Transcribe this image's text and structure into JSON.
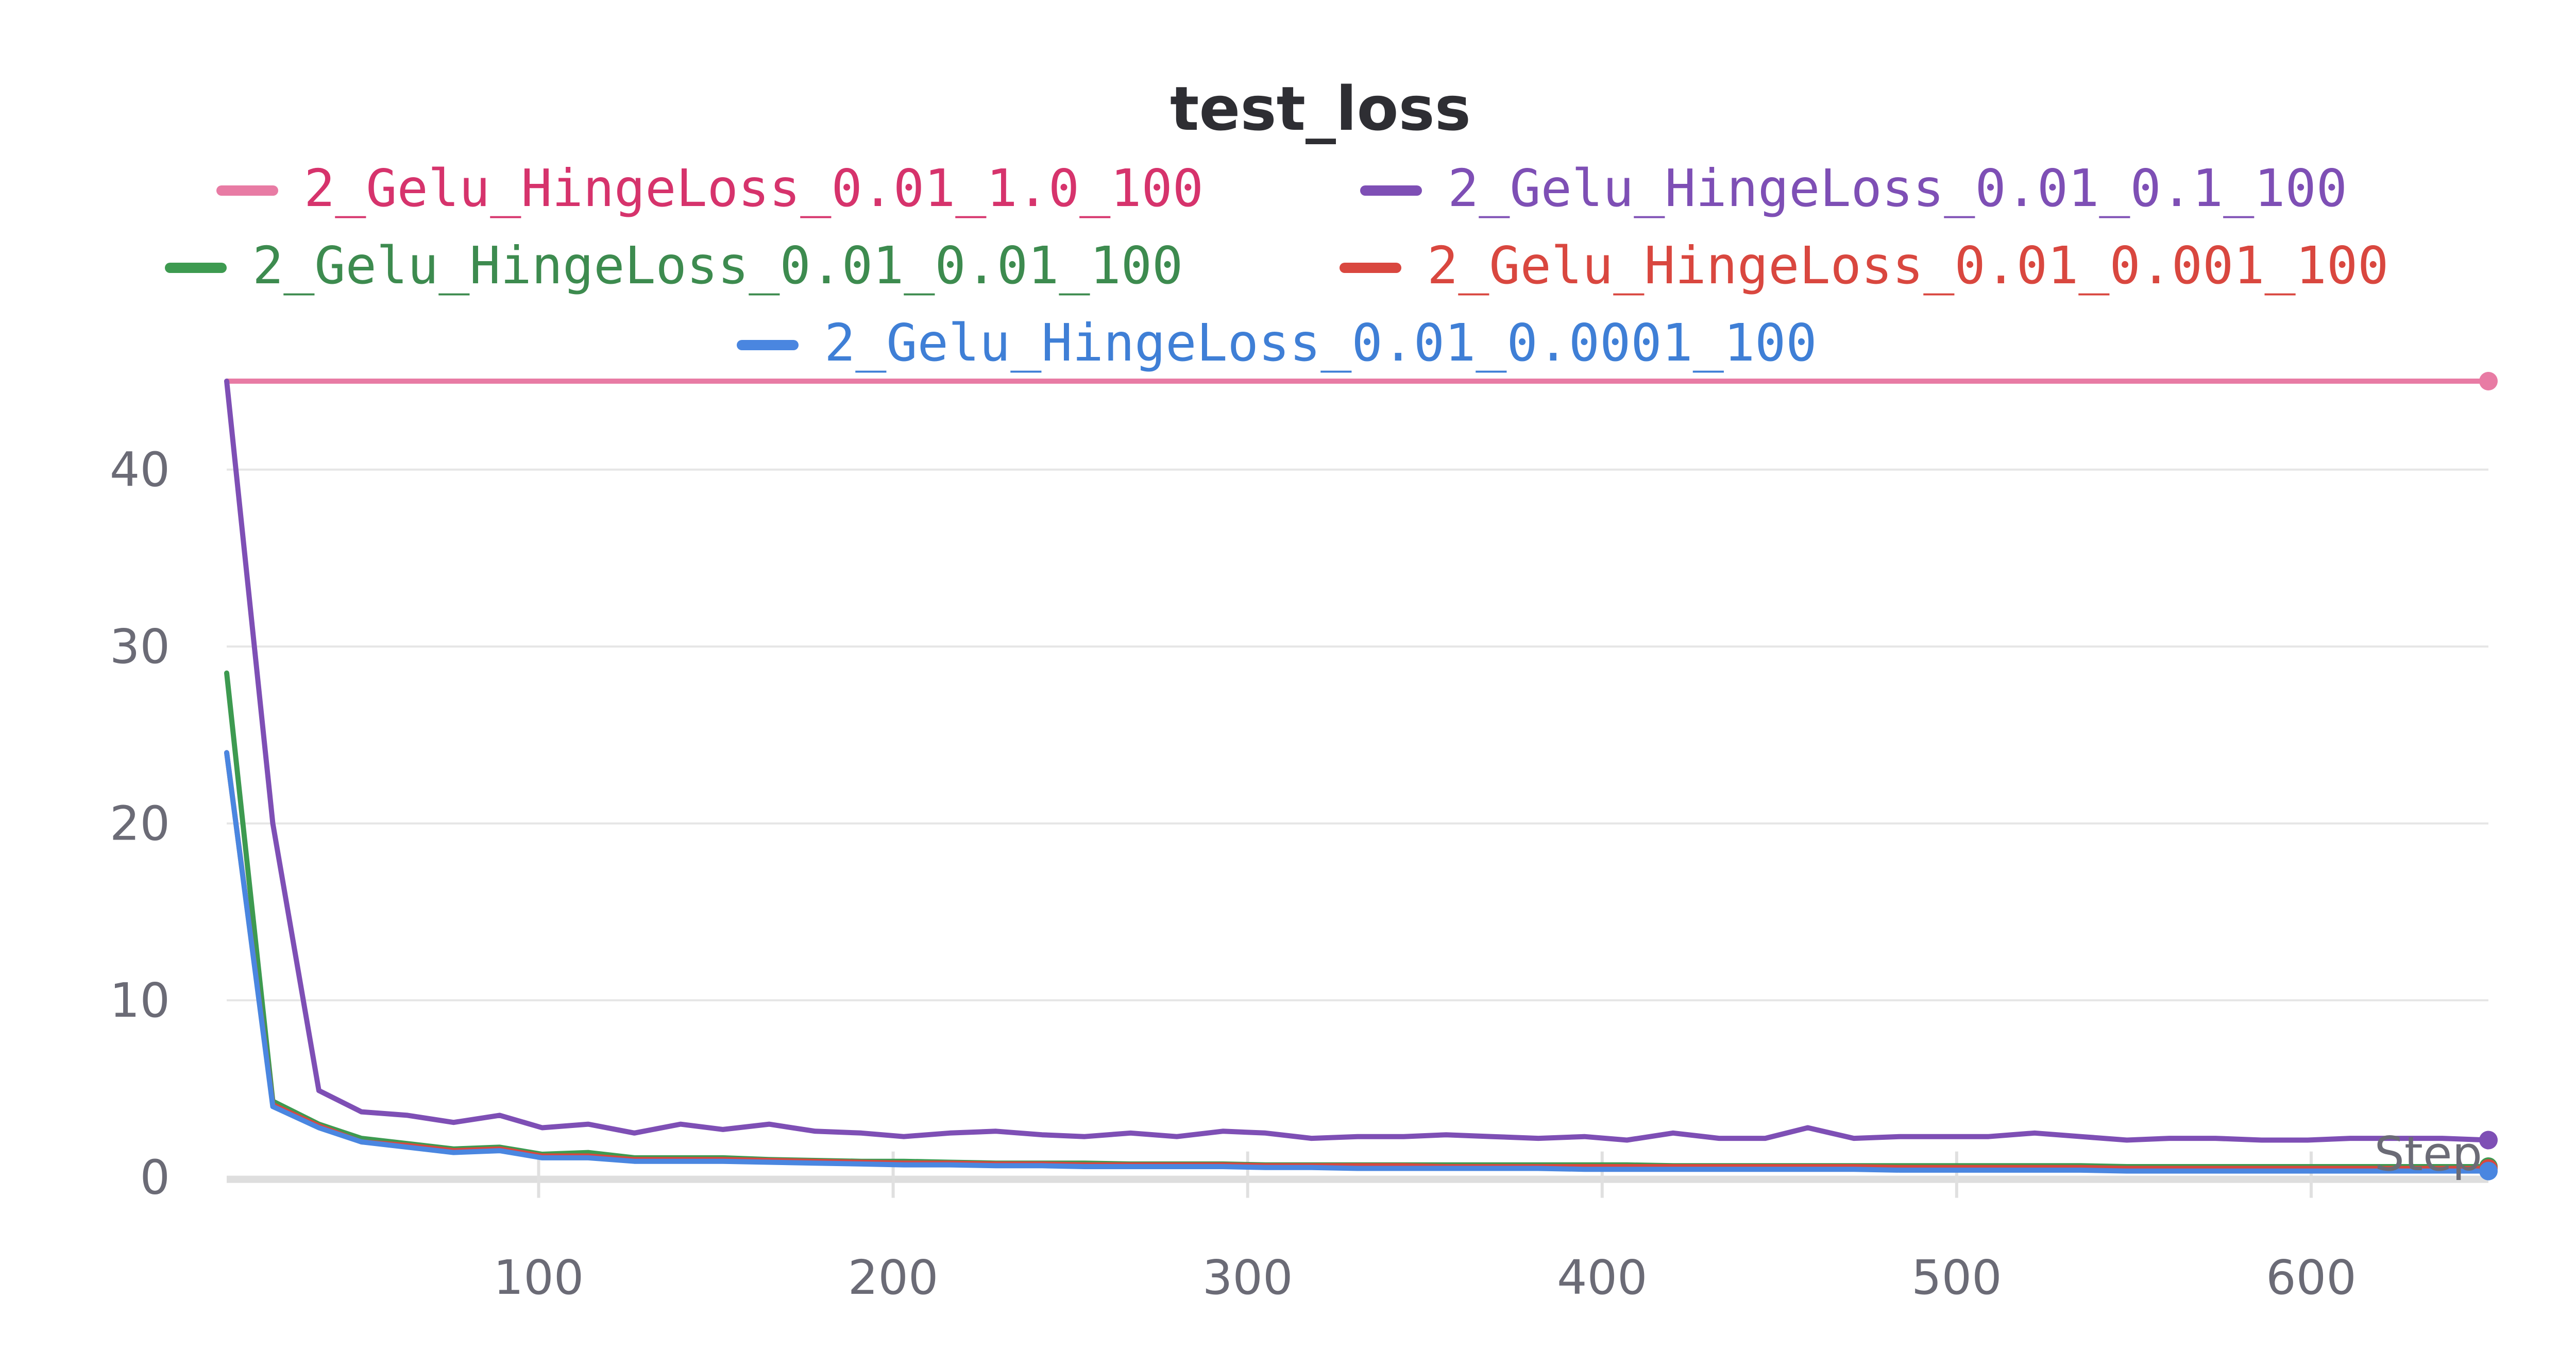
{
  "chart_data": {
    "type": "line",
    "title": "test_loss",
    "xlabel": "Step",
    "ylabel": "",
    "xlim": [
      12,
      650
    ],
    "ylim": [
      -1,
      45
    ],
    "x_ticks": [
      100,
      200,
      300,
      400,
      500,
      600
    ],
    "y_ticks": [
      0,
      10,
      20,
      30,
      40
    ],
    "grid": true,
    "legend_position": "top",
    "x": [
      12,
      25,
      38,
      50,
      63,
      76,
      89,
      101,
      114,
      127,
      140,
      152,
      165,
      178,
      191,
      203,
      216,
      229,
      242,
      254,
      267,
      280,
      293,
      305,
      318,
      331,
      344,
      356,
      369,
      382,
      395,
      407,
      420,
      433,
      446,
      458,
      471,
      484,
      497,
      509,
      522,
      535,
      548,
      560,
      573,
      586,
      599,
      611,
      624,
      637,
      650
    ],
    "series": [
      {
        "name": "2_Gelu_HingeLoss_0.01_1.0_100",
        "color": "#e87ba4",
        "legend_text_color": "#d6336c",
        "values": [
          45,
          45,
          45,
          45,
          45,
          45,
          45,
          45,
          45,
          45,
          45,
          45,
          45,
          45,
          45,
          45,
          45,
          45,
          45,
          45,
          45,
          45,
          45,
          45,
          45,
          45,
          45,
          45,
          45,
          45,
          45,
          45,
          45,
          45,
          45,
          45,
          45,
          45,
          45,
          45,
          45,
          45,
          45,
          45,
          45,
          45,
          45,
          45,
          45,
          45,
          45
        ]
      },
      {
        "name": "2_Gelu_HingeLoss_0.01_0.1_100",
        "color": "#7e4fb5",
        "legend_text_color": "#7e4fb5",
        "values": [
          45,
          20,
          4.9,
          3.7,
          3.5,
          3.1,
          3.5,
          2.8,
          3.0,
          2.5,
          3.0,
          2.7,
          3.0,
          2.6,
          2.5,
          2.3,
          2.5,
          2.6,
          2.4,
          2.3,
          2.5,
          2.3,
          2.6,
          2.5,
          2.2,
          2.3,
          2.3,
          2.4,
          2.3,
          2.2,
          2.3,
          2.1,
          2.5,
          2.2,
          2.2,
          2.8,
          2.2,
          2.3,
          2.3,
          2.3,
          2.5,
          2.3,
          2.1,
          2.2,
          2.2,
          2.1,
          2.1,
          2.2,
          2.2,
          2.2,
          2.1
        ]
      },
      {
        "name": "2_Gelu_HingeLoss_0.01_0.01_100",
        "color": "#3d9a50",
        "legend_text_color": "#3d8b4f",
        "values": [
          28.5,
          4.3,
          3.0,
          2.2,
          1.9,
          1.6,
          1.7,
          1.3,
          1.4,
          1.1,
          1.1,
          1.1,
          1.0,
          0.95,
          0.9,
          0.9,
          0.85,
          0.8,
          0.8,
          0.8,
          0.75,
          0.75,
          0.75,
          0.7,
          0.7,
          0.7,
          0.7,
          0.7,
          0.7,
          0.7,
          0.7,
          0.7,
          0.65,
          0.65,
          0.65,
          0.65,
          0.65,
          0.65,
          0.65,
          0.65,
          0.65,
          0.65,
          0.6,
          0.6,
          0.6,
          0.6,
          0.6,
          0.6,
          0.6,
          0.6,
          0.6
        ]
      },
      {
        "name": "2_Gelu_HingeLoss_0.01_0.001_100",
        "color": "#d9473f",
        "legend_text_color": "#d9473f",
        "values": [
          24,
          4.1,
          2.9,
          2.0,
          1.8,
          1.5,
          1.6,
          1.2,
          1.2,
          1.0,
          1.0,
          1.0,
          0.95,
          0.9,
          0.85,
          0.8,
          0.8,
          0.75,
          0.75,
          0.7,
          0.7,
          0.7,
          0.7,
          0.65,
          0.65,
          0.65,
          0.65,
          0.6,
          0.6,
          0.6,
          0.6,
          0.6,
          0.6,
          0.6,
          0.6,
          0.6,
          0.6,
          0.55,
          0.55,
          0.55,
          0.55,
          0.55,
          0.5,
          0.5,
          0.5,
          0.5,
          0.5,
          0.5,
          0.5,
          0.5,
          0.5
        ]
      },
      {
        "name": "2_Gelu_HingeLoss_0.01_0.0001_100",
        "color": "#4a86e0",
        "legend_text_color": "#3f7fd6",
        "values": [
          24,
          4.0,
          2.8,
          2.0,
          1.7,
          1.4,
          1.5,
          1.1,
          1.1,
          0.9,
          0.9,
          0.9,
          0.85,
          0.8,
          0.75,
          0.7,
          0.7,
          0.65,
          0.65,
          0.6,
          0.6,
          0.6,
          0.6,
          0.55,
          0.55,
          0.5,
          0.5,
          0.5,
          0.5,
          0.5,
          0.45,
          0.45,
          0.45,
          0.45,
          0.45,
          0.45,
          0.45,
          0.4,
          0.4,
          0.4,
          0.4,
          0.4,
          0.35,
          0.35,
          0.35,
          0.35,
          0.35,
          0.35,
          0.35,
          0.35,
          0.35
        ]
      }
    ]
  }
}
